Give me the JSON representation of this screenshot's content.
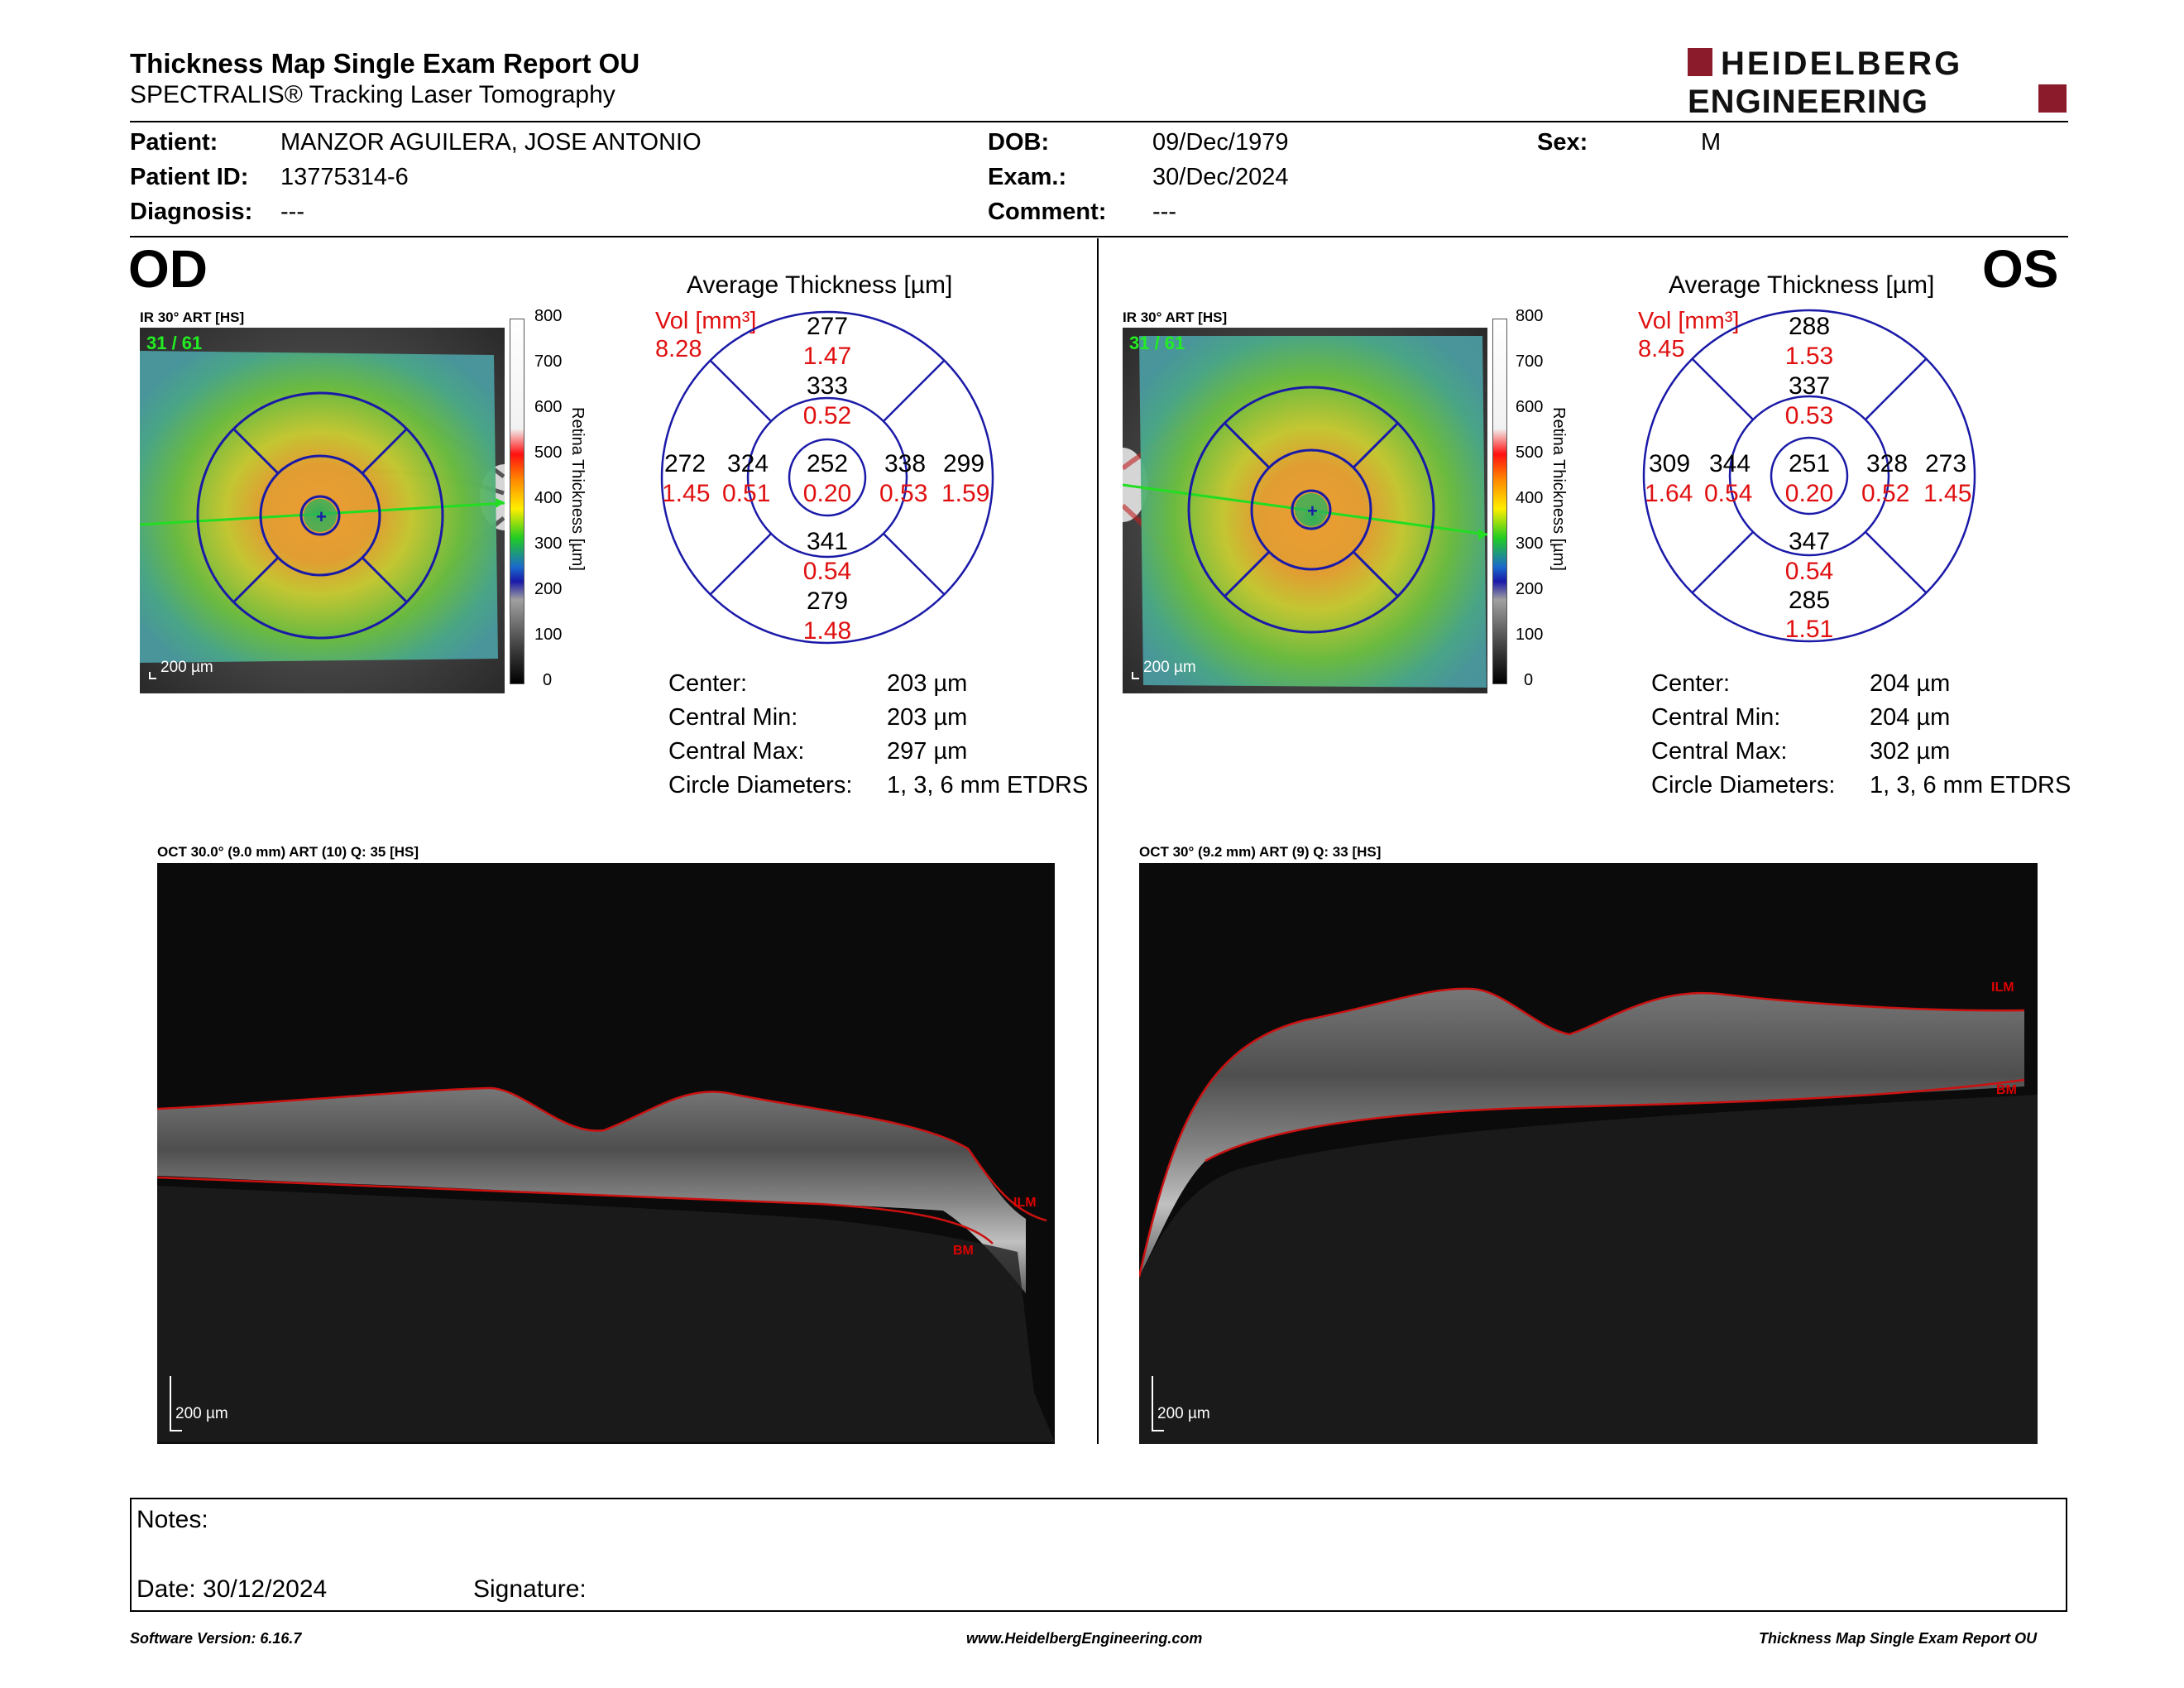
{
  "header": {
    "title": "Thickness Map Single Exam Report OU",
    "subtitle": "SPECTRALIS® Tracking Laser Tomography",
    "logo_line1": "HEIDELBERG",
    "logo_line2": "ENGINEERING",
    "logo_color": "#8b1a2b"
  },
  "patient": {
    "patient_label": "Patient:",
    "patient_value": "MANZOR AGUILERA, JOSE ANTONIO",
    "id_label": "Patient ID:",
    "id_value": "13775314-6",
    "diagnosis_label": "Diagnosis:",
    "diagnosis_value": "---",
    "dob_label": "DOB:",
    "dob_value": "09/Dec/1979",
    "exam_label": "Exam.:",
    "exam_value": "30/Dec/2024",
    "comment_label": "Comment:",
    "comment_value": "---",
    "sex_label": "Sex:",
    "sex_value": "M"
  },
  "od": {
    "eye": "OD",
    "ir_label": "IR 30° ART [HS]",
    "frame_counter": "31 / 61",
    "scale_bar": "200 µm",
    "colorbar_ticks": [
      "800",
      "700",
      "600",
      "500",
      "400",
      "300",
      "200",
      "100",
      "0"
    ],
    "colorbar_title": "Retina Thickness [µm]",
    "chart_title": "Average Thickness [µm]",
    "vol_label": "Vol [mm³]",
    "vol_total": "8.28",
    "sectors": {
      "outer_sup": {
        "t": "277",
        "v": "1.47"
      },
      "inner_sup": {
        "t": "333",
        "v": "0.52"
      },
      "outer_temp": {
        "t": "272",
        "v": "1.45"
      },
      "inner_temp": {
        "t": "324",
        "v": "0.51"
      },
      "center": {
        "t": "252",
        "v": "0.20"
      },
      "inner_nas": {
        "t": "338",
        "v": "0.53"
      },
      "outer_nas": {
        "t": "299",
        "v": "1.59"
      },
      "inner_inf": {
        "t": "341",
        "v": "0.54"
      },
      "outer_inf": {
        "t": "279",
        "v": "1.48"
      }
    },
    "stats": [
      {
        "label": "Center:",
        "value": "203 µm"
      },
      {
        "label": "Central Min:",
        "value": "203 µm"
      },
      {
        "label": "Central Max:",
        "value": "297 µm"
      },
      {
        "label": "Circle Diameters:",
        "value": "1, 3, 6 mm ETDRS"
      }
    ],
    "oct_label": "OCT 30.0° (9.0 mm) ART (10) Q: 35 [HS]",
    "oct_ilm": "ILM",
    "oct_bm": "BM",
    "oct_scale": "200 µm"
  },
  "os": {
    "eye": "OS",
    "ir_label": "IR 30° ART [HS]",
    "frame_counter": "31 / 61",
    "scale_bar": "200 µm",
    "colorbar_ticks": [
      "800",
      "700",
      "600",
      "500",
      "400",
      "300",
      "200",
      "100",
      "0"
    ],
    "colorbar_title": "Retina Thickness [µm]",
    "chart_title": "Average Thickness [µm]",
    "vol_label": "Vol [mm³]",
    "vol_total": "8.45",
    "sectors": {
      "outer_sup": {
        "t": "288",
        "v": "1.53"
      },
      "inner_sup": {
        "t": "337",
        "v": "0.53"
      },
      "outer_temp": {
        "t": "309",
        "v": "1.64"
      },
      "inner_temp": {
        "t": "344",
        "v": "0.54"
      },
      "center": {
        "t": "251",
        "v": "0.20"
      },
      "inner_nas": {
        "t": "328",
        "v": "0.52"
      },
      "outer_nas": {
        "t": "273",
        "v": "1.45"
      },
      "inner_inf": {
        "t": "347",
        "v": "0.54"
      },
      "outer_inf": {
        "t": "285",
        "v": "1.51"
      }
    },
    "stats": [
      {
        "label": "Center:",
        "value": "204 µm"
      },
      {
        "label": "Central Min:",
        "value": "204 µm"
      },
      {
        "label": "Central Max:",
        "value": "302 µm"
      },
      {
        "label": "Circle Diameters:",
        "value": "1, 3, 6 mm ETDRS"
      }
    ],
    "oct_label": "OCT 30° (9.2 mm) ART (9) Q: 33 [HS]",
    "oct_ilm": "ILM",
    "oct_bm": "BM",
    "oct_scale": "200 µm"
  },
  "notes": {
    "notes_label": "Notes:",
    "date_label": "Date: 30/12/2024",
    "signature_label": "Signature:"
  },
  "footer": {
    "software": "Software Version: 6.16.7",
    "website": "www.HeidelbergEngineering.com",
    "report": "Thickness Map Single Exam Report OU"
  },
  "colors": {
    "grid_blue": "#1a1aa8",
    "value_red": "#e01010",
    "layer_red": "#cc1111",
    "scan_green": "#22dd22"
  }
}
